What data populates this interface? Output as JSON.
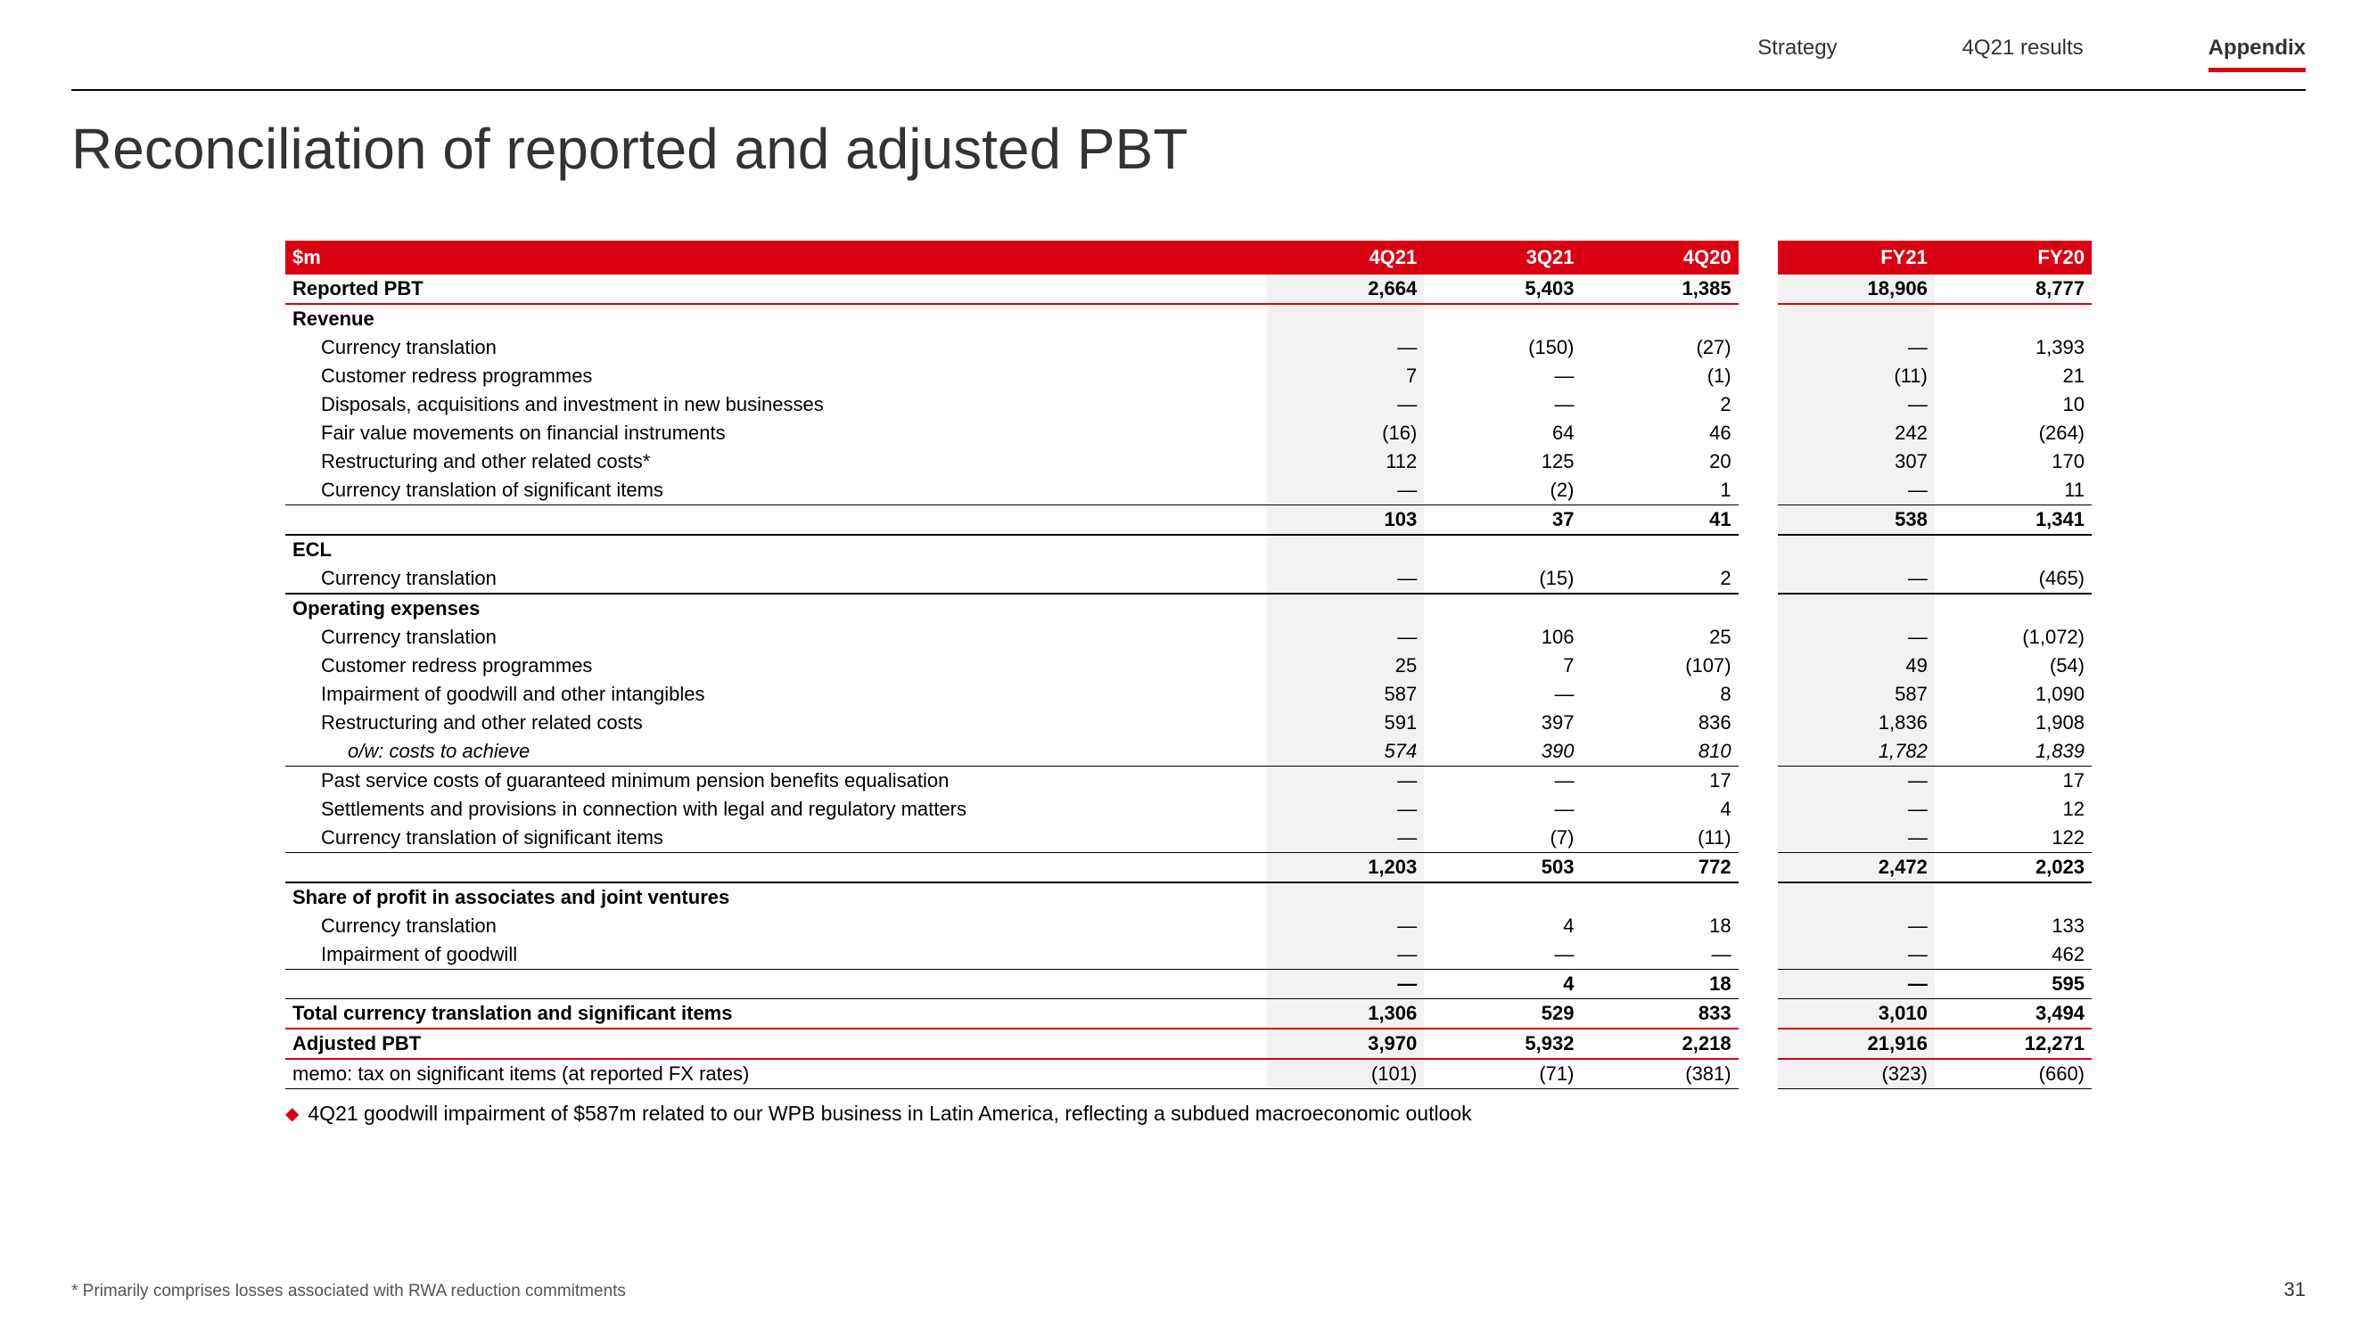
{
  "nav": {
    "tab1": "Strategy",
    "tab2": "4Q21 results",
    "tab3": "Appendix"
  },
  "title": "Reconciliation of reported and adjusted PBT",
  "header": {
    "label": "$m",
    "c1": "4Q21",
    "c2": "3Q21",
    "c3": "4Q20",
    "c4": "FY21",
    "c5": "FY20"
  },
  "rows": {
    "reported": {
      "label": "Reported PBT",
      "v": [
        "2,664",
        "5,403",
        "1,385",
        "18,906",
        "8,777"
      ]
    },
    "revenue_head": {
      "label": "Revenue"
    },
    "rev1": {
      "label": "Currency translation",
      "v": [
        "—",
        "(150)",
        "(27)",
        "—",
        "1,393"
      ]
    },
    "rev2": {
      "label": "Customer redress programmes",
      "v": [
        "7",
        "—",
        "(1)",
        "(11)",
        "21"
      ]
    },
    "rev3": {
      "label": "Disposals, acquisitions and investment in new businesses",
      "v": [
        "—",
        "—",
        "2",
        "—",
        "10"
      ]
    },
    "rev4": {
      "label": "Fair value movements on financial instruments",
      "v": [
        "(16)",
        "64",
        "46",
        "242",
        "(264)"
      ]
    },
    "rev5": {
      "label": "Restructuring and other related costs*",
      "v": [
        "112",
        "125",
        "20",
        "307",
        "170"
      ]
    },
    "rev6": {
      "label": "Currency translation of significant items",
      "v": [
        "—",
        "(2)",
        "1",
        "—",
        "11"
      ]
    },
    "rev_sub": {
      "label": "",
      "v": [
        "103",
        "37",
        "41",
        "538",
        "1,341"
      ]
    },
    "ecl_head": {
      "label": "ECL"
    },
    "ecl1": {
      "label": "Currency translation",
      "v": [
        "—",
        "(15)",
        "2",
        "—",
        "(465)"
      ]
    },
    "op_head": {
      "label": "Operating expenses"
    },
    "op1": {
      "label": "Currency translation",
      "v": [
        "—",
        "106",
        "25",
        "—",
        "(1,072)"
      ]
    },
    "op2": {
      "label": "Customer redress programmes",
      "v": [
        "25",
        "7",
        "(107)",
        "49",
        "(54)"
      ]
    },
    "op3": {
      "label": "Impairment of goodwill and other intangibles",
      "v": [
        "587",
        "—",
        "8",
        "587",
        "1,090"
      ]
    },
    "op4": {
      "label": "Restructuring and other related costs",
      "v": [
        "591",
        "397",
        "836",
        "1,836",
        "1,908"
      ]
    },
    "op5": {
      "label": "o/w: costs to achieve",
      "v": [
        "574",
        "390",
        "810",
        "1,782",
        "1,839"
      ]
    },
    "op6": {
      "label": "Past service costs of guaranteed minimum pension benefits equalisation",
      "v": [
        "—",
        "—",
        "17",
        "—",
        "17"
      ]
    },
    "op7": {
      "label": "Settlements and provisions in connection with legal and regulatory matters",
      "v": [
        "—",
        "—",
        "4",
        "—",
        "12"
      ]
    },
    "op8": {
      "label": "Currency translation of significant items",
      "v": [
        "—",
        "(7)",
        "(11)",
        "—",
        "122"
      ]
    },
    "op_sub": {
      "label": "",
      "v": [
        "1,203",
        "503",
        "772",
        "2,472",
        "2,023"
      ]
    },
    "sh_head": {
      "label": "Share of profit in associates and joint ventures"
    },
    "sh1": {
      "label": "Currency translation",
      "v": [
        "—",
        "4",
        "18",
        "—",
        "133"
      ]
    },
    "sh2": {
      "label": "Impairment of goodwill",
      "v": [
        "—",
        "—",
        "—",
        "—",
        "462"
      ]
    },
    "sh_sub": {
      "label": "",
      "v": [
        "—",
        "4",
        "18",
        "—",
        "595"
      ]
    },
    "total": {
      "label": "Total currency translation and significant items",
      "v": [
        "1,306",
        "529",
        "833",
        "3,010",
        "3,494"
      ]
    },
    "adjusted": {
      "label": "Adjusted PBT",
      "v": [
        "3,970",
        "5,932",
        "2,218",
        "21,916",
        "12,271"
      ]
    },
    "memo": {
      "label": "memo: tax on significant items (at reported FX rates)",
      "v": [
        "(101)",
        "(71)",
        "(381)",
        "(323)",
        "(660)"
      ]
    }
  },
  "bullet": "4Q21 goodwill impairment of $587m related to our WPB business in Latin America, reflecting a subdued macroeconomic outlook",
  "footnote": "* Primarily comprises losses associated with RWA reduction commitments",
  "page": "31",
  "colors": {
    "accent": "#db0011",
    "shade": "#f2f2f2"
  }
}
